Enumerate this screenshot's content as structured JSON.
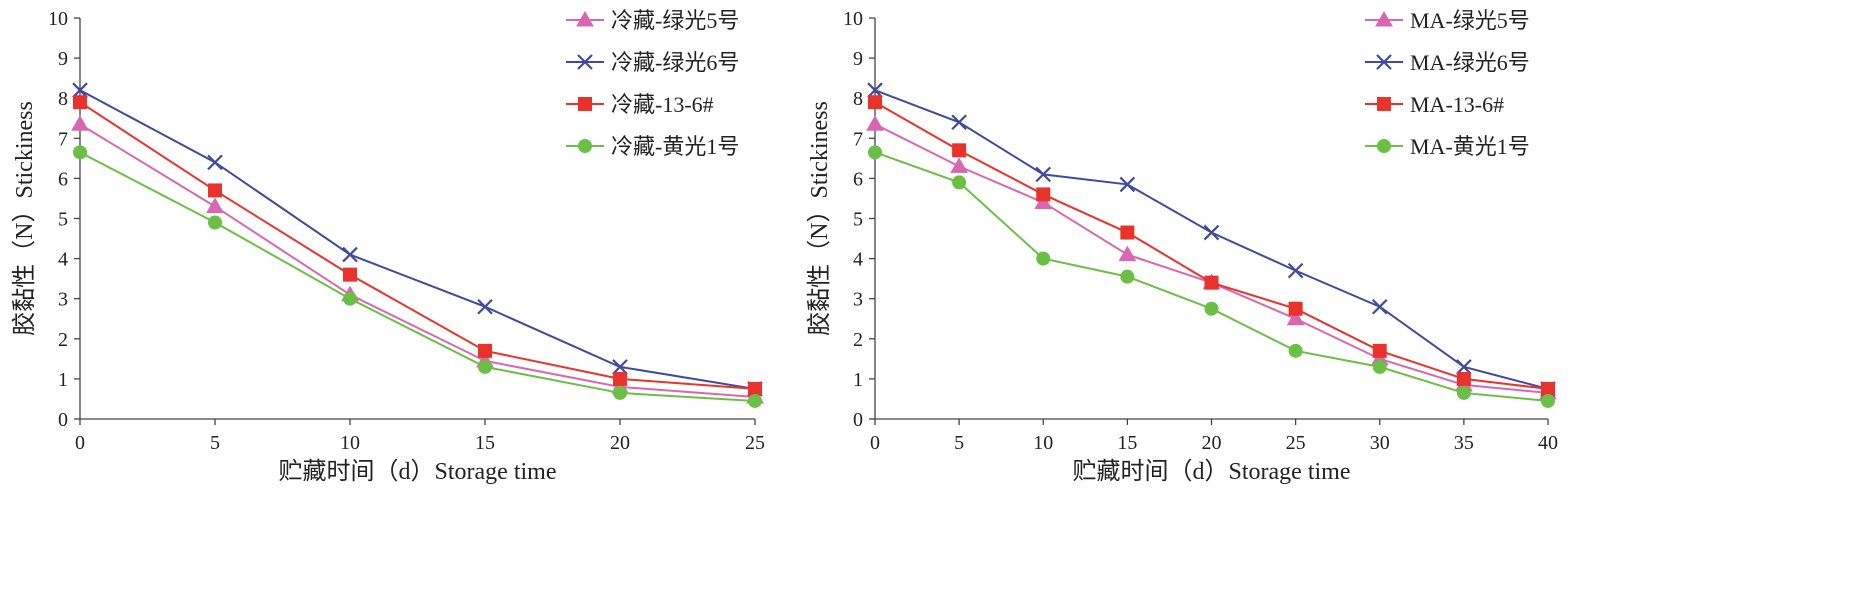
{
  "chart_data": [
    {
      "type": "line",
      "xlabel": "贮藏时间（d）Storage time",
      "ylabel": "胶黏性（N）Stickiness",
      "x": [
        0,
        5,
        10,
        15,
        20,
        25
      ],
      "xticks": [
        "0",
        "5",
        "10",
        "15",
        "20",
        "25"
      ],
      "yticks": [
        "0",
        "1",
        "2",
        "3",
        "4",
        "5",
        "6",
        "7",
        "8",
        "9",
        "10"
      ],
      "xlim": [
        0,
        25
      ],
      "ylim": [
        0,
        10
      ],
      "grid": false,
      "legend_position": "top-right",
      "series": [
        {
          "name": "冷藏-绿光5号",
          "marker": "triangle",
          "color": "#d966b0",
          "values": [
            7.35,
            5.3,
            3.1,
            1.45,
            0.8,
            0.55
          ]
        },
        {
          "name": "冷藏-绿光6号",
          "marker": "x",
          "color": "#3f4a9a",
          "values": [
            8.2,
            6.4,
            4.1,
            2.8,
            1.3,
            0.75
          ]
        },
        {
          "name": "冷藏-13-6#",
          "marker": "square",
          "color": "#e8322b",
          "values": [
            7.9,
            5.7,
            3.6,
            1.7,
            1.0,
            0.75
          ]
        },
        {
          "name": "冷藏-黄光1号",
          "marker": "circle",
          "color": "#6cbf45",
          "values": [
            6.65,
            4.9,
            3.0,
            1.3,
            0.65,
            0.45
          ]
        }
      ]
    },
    {
      "type": "line",
      "xlabel": "贮藏时间（d）Storage time",
      "ylabel": "胶黏性（N）Stickiness",
      "x": [
        0,
        5,
        10,
        15,
        20,
        25,
        30,
        35,
        40
      ],
      "xticks": [
        "0",
        "5",
        "10",
        "15",
        "20",
        "25",
        "30",
        "35",
        "40"
      ],
      "yticks": [
        "0",
        "1",
        "2",
        "3",
        "4",
        "5",
        "6",
        "7",
        "8",
        "9",
        "10"
      ],
      "xlim": [
        0,
        40
      ],
      "ylim": [
        0,
        10
      ],
      "grid": false,
      "legend_position": "top-right",
      "series": [
        {
          "name": "MA-绿光5号",
          "marker": "triangle",
          "color": "#d966b0",
          "values": [
            7.35,
            6.3,
            5.4,
            4.1,
            3.4,
            2.5,
            1.5,
            0.85,
            0.65
          ]
        },
        {
          "name": "MA-绿光6号",
          "marker": "x",
          "color": "#3f4a9a",
          "values": [
            8.2,
            7.4,
            6.1,
            5.85,
            4.65,
            3.7,
            2.8,
            1.3,
            0.75
          ]
        },
        {
          "name": "MA-13-6#",
          "marker": "square",
          "color": "#e8322b",
          "values": [
            7.9,
            6.7,
            5.6,
            4.65,
            3.4,
            2.75,
            1.7,
            1.0,
            0.75
          ]
        },
        {
          "name": "MA-黄光1号",
          "marker": "circle",
          "color": "#6cbf45",
          "values": [
            6.65,
            5.9,
            4.0,
            3.55,
            2.75,
            1.7,
            1.3,
            0.65,
            0.45
          ]
        }
      ]
    }
  ]
}
